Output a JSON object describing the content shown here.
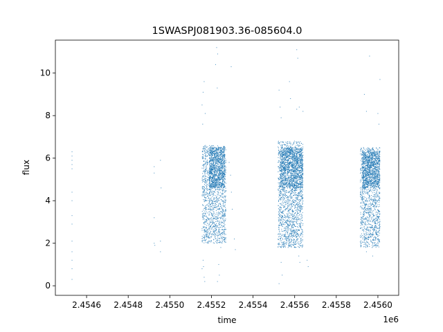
{
  "chart_data": {
    "type": "scatter",
    "title": "1SWASPJ081903.36-085604.0",
    "xlabel": "time",
    "ylabel": "flux",
    "x_offset_label": "1e6",
    "xlim": [
      2454450,
      2456100
    ],
    "ylim": [
      -0.45,
      11.55
    ],
    "x_ticks": [
      2454600,
      2454800,
      2455000,
      2455200,
      2455400,
      2455600,
      2455800,
      2456000
    ],
    "x_tick_labels": [
      "2.4546",
      "2.4548",
      "2.4550",
      "2.4552",
      "2.4554",
      "2.4556",
      "2.4558",
      "2.4560"
    ],
    "y_ticks": [
      0,
      2,
      4,
      6,
      8,
      10
    ],
    "y_tick_labels": [
      "0",
      "2",
      "4",
      "6",
      "8",
      "10"
    ],
    "grid": false,
    "marker_color": "#1f77b4",
    "series": [
      {
        "points": [
          [
            2454530,
            6.3
          ],
          [
            2454530,
            6.1
          ],
          [
            2454530,
            5.9
          ],
          [
            2454530,
            5.7
          ],
          [
            2454530,
            5.5
          ],
          [
            2454530,
            4.4
          ],
          [
            2454530,
            4.0
          ],
          [
            2454530,
            3.3
          ],
          [
            2454530,
            2.9
          ],
          [
            2454530,
            2.1
          ],
          [
            2454530,
            1.6
          ],
          [
            2454530,
            1.2
          ],
          [
            2454530,
            0.8
          ],
          [
            2454530,
            0.3
          ],
          [
            2454925,
            5.6
          ],
          [
            2454925,
            5.3
          ],
          [
            2454925,
            3.2
          ],
          [
            2454925,
            2.0
          ],
          [
            2454928,
            1.9
          ],
          [
            2454955,
            5.9
          ],
          [
            2454958,
            4.6
          ],
          [
            2454955,
            2.1
          ],
          [
            2454955,
            1.6
          ],
          [
            2455155,
            8.5
          ],
          [
            2455160,
            9.1
          ],
          [
            2455165,
            9.6
          ],
          [
            2455170,
            8.1
          ],
          [
            2455158,
            7.6
          ],
          [
            2455160,
            1.2
          ],
          [
            2455162,
            0.9
          ],
          [
            2455165,
            0.4
          ],
          [
            2455168,
            0.2
          ],
          [
            2455155,
            0.8
          ],
          [
            2455225,
            11.2
          ],
          [
            2455230,
            10.9
          ],
          [
            2455220,
            10.4
          ],
          [
            2455228,
            9.3
          ],
          [
            2455235,
            1.0
          ],
          [
            2455238,
            0.5
          ],
          [
            2455229,
            0.2
          ],
          [
            2455245,
            1.8
          ],
          [
            2455285,
            5.8
          ],
          [
            2455292,
            5.2
          ],
          [
            2455296,
            4.4
          ],
          [
            2455300,
            3.6
          ],
          [
            2455310,
            2.2
          ],
          [
            2455315,
            1.7
          ],
          [
            2455295,
            10.3
          ],
          [
            2455525,
            9.2
          ],
          [
            2455530,
            8.4
          ],
          [
            2455535,
            7.9
          ],
          [
            2455575,
            9.6
          ],
          [
            2455580,
            8.8
          ],
          [
            2455610,
            8.3
          ],
          [
            2455622,
            8.4
          ],
          [
            2455640,
            8.2
          ],
          [
            2455610,
            11.1
          ],
          [
            2455615,
            10.7
          ],
          [
            2455535,
            1.1
          ],
          [
            2455540,
            0.5
          ],
          [
            2455525,
            0.1
          ],
          [
            2455620,
            1.4
          ],
          [
            2455625,
            1.1
          ],
          [
            2455660,
            1.2
          ],
          [
            2455665,
            0.9
          ],
          [
            2455960,
            10.8
          ],
          [
            2455935,
            9.0
          ],
          [
            2455945,
            8.2
          ],
          [
            2456000,
            8.1
          ],
          [
            2456005,
            7.6
          ],
          [
            2455945,
            1.6
          ],
          [
            2455975,
            1.4
          ],
          [
            2456010,
            9.7
          ]
        ],
        "clusters": [
          {
            "x_range": [
              2455155,
              2455270
            ],
            "y_range": [
              2.0,
              6.6
            ],
            "n": 1400,
            "seed": 11
          },
          {
            "x_range": [
              2455190,
              2455265
            ],
            "y_range": [
              4.6,
              6.5
            ],
            "n": 900,
            "seed": 12
          },
          {
            "x_range": [
              2455520,
              2455640
            ],
            "y_range": [
              1.8,
              6.8
            ],
            "n": 1700,
            "seed": 21
          },
          {
            "x_range": [
              2455530,
              2455640
            ],
            "y_range": [
              4.6,
              6.5
            ],
            "n": 1100,
            "seed": 22
          },
          {
            "x_range": [
              2455915,
              2456010
            ],
            "y_range": [
              1.8,
              6.5
            ],
            "n": 1200,
            "seed": 31
          },
          {
            "x_range": [
              2455925,
              2456010
            ],
            "y_range": [
              4.6,
              6.3
            ],
            "n": 900,
            "seed": 32
          }
        ]
      }
    ]
  }
}
